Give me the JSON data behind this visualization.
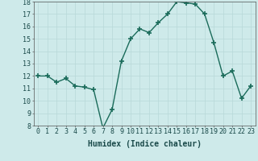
{
  "x": [
    0,
    1,
    2,
    3,
    4,
    5,
    6,
    7,
    8,
    9,
    10,
    11,
    12,
    13,
    14,
    15,
    16,
    17,
    18,
    19,
    20,
    21,
    22,
    23
  ],
  "y": [
    12,
    12,
    11.5,
    11.8,
    11.2,
    11.1,
    10.9,
    7.8,
    9.3,
    13.2,
    15.0,
    15.8,
    15.5,
    16.3,
    17.0,
    18.0,
    17.9,
    17.8,
    17.0,
    14.7,
    12.0,
    12.4,
    10.2,
    11.2
  ],
  "line_color": "#1a6b5a",
  "marker": "+",
  "marker_size": 4,
  "marker_lw": 1.2,
  "line_width": 1.0,
  "bg_color": "#ceeaea",
  "grid_color": "#b8d8d8",
  "xlabel": "Humidex (Indice chaleur)",
  "ylim": [
    8,
    18
  ],
  "xlim": [
    -0.5,
    23.5
  ],
  "yticks": [
    8,
    9,
    10,
    11,
    12,
    13,
    14,
    15,
    16,
    17,
    18
  ],
  "xticks": [
    0,
    1,
    2,
    3,
    4,
    5,
    6,
    7,
    8,
    9,
    10,
    11,
    12,
    13,
    14,
    15,
    16,
    17,
    18,
    19,
    20,
    21,
    22,
    23
  ],
  "label_fontsize": 7,
  "tick_fontsize": 6
}
